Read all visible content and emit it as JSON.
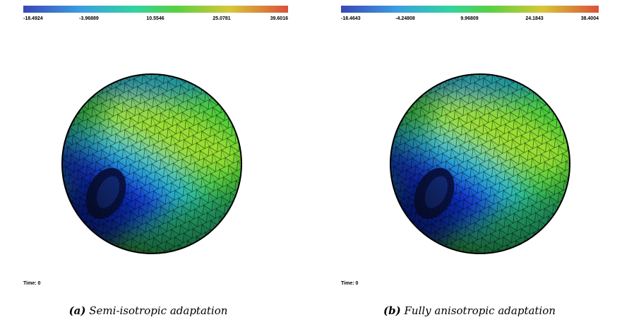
{
  "panels": [
    {
      "colorbar_ticks": [
        "-18.4924",
        "-3.96889",
        "10.5546",
        "25.0781",
        "39.6016"
      ],
      "time_label": "Time: 0",
      "caption_label": "(a)",
      "caption": "Semi-isotropic adaptation"
    },
    {
      "colorbar_ticks": [
        "-18.4643",
        "-4.24808",
        "9.96809",
        "24.1843",
        "38.4004"
      ],
      "time_label": "Time: 0",
      "caption_label": "(b)",
      "caption": "Fully anisotropic adaptation"
    }
  ]
}
